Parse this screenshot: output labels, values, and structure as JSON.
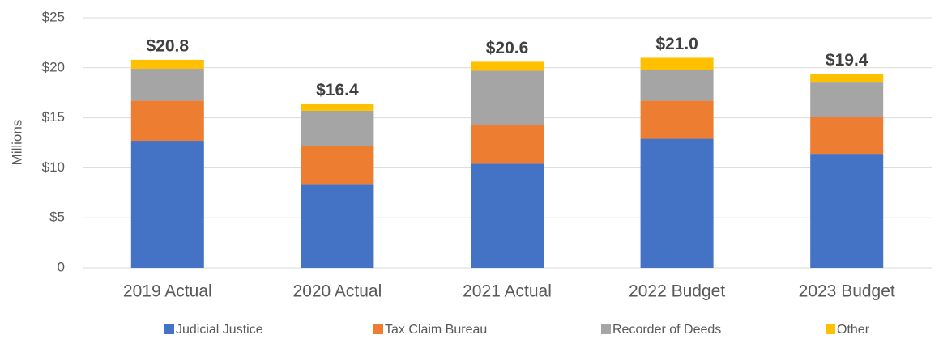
{
  "chart_data": {
    "type": "stacked_bar",
    "y_axis_label": "Millions",
    "categories": [
      "2019 Actual",
      "2020 Actual",
      "2021 Actual",
      "2022 Budget",
      "2023 Budget"
    ],
    "series": [
      {
        "name": "Judicial Justice",
        "color": "#4472c4",
        "values": [
          12.7,
          8.3,
          10.4,
          12.9,
          11.4
        ]
      },
      {
        "name": "Tax Claim Bureau",
        "color": "#ed7d31",
        "values": [
          4.0,
          3.9,
          3.9,
          3.8,
          3.7
        ]
      },
      {
        "name": "Recorder of Deeds",
        "color": "#a5a5a5",
        "values": [
          3.2,
          3.5,
          5.4,
          3.1,
          3.5
        ]
      },
      {
        "name": "Other",
        "color": "#ffc000",
        "values": [
          0.9,
          0.7,
          0.9,
          1.2,
          0.8
        ]
      }
    ],
    "totals": [
      20.8,
      16.4,
      20.6,
      21.0,
      19.4
    ],
    "total_labels": [
      "$20.8",
      "$16.4",
      "$20.6",
      "$21.0",
      "$19.4"
    ],
    "ylim": [
      0,
      25
    ],
    "yticks": [
      0,
      {
        "value": 5,
        "label": "$5"
      },
      {
        "value": 10,
        "label": "$10"
      },
      {
        "value": 15,
        "label": "$15"
      },
      {
        "value": 20,
        "label": "$20"
      },
      {
        "value": 25,
        "label": "$25"
      }
    ],
    "grid": true,
    "legend": "bottom"
  }
}
